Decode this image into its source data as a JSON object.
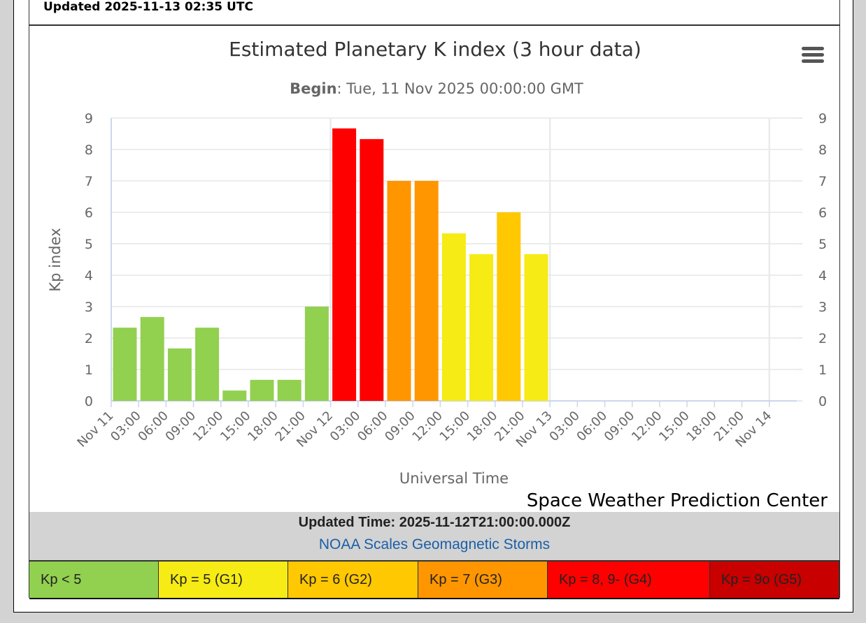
{
  "page_updated": "Updated 2025-11-13 02:35 UTC",
  "updated_time": "Updated Time: 2025-11-12T21:00:00.000Z",
  "scales_link": "NOAA Scales Geomagnetic Storms",
  "credit": "Space Weather Prediction Center",
  "legend": [
    {
      "label": "Kp < 5",
      "color": "#92D050"
    },
    {
      "label": "Kp = 5 (G1)",
      "color": "#F6EB14"
    },
    {
      "label": "Kp = 6 (G2)",
      "color": "#FFC800"
    },
    {
      "label": "Kp = 7 (G3)",
      "color": "#FF9600"
    },
    {
      "label": "Kp = 8, 9- (G4)",
      "color": "#FF0000"
    },
    {
      "label": "Kp = 9o (G5)",
      "color": "#C80000"
    }
  ],
  "chart_data": {
    "type": "bar",
    "title": "Estimated Planetary K index (3 hour data)",
    "subtitle_label": "Begin",
    "subtitle_value": ": Tue, 11 Nov 2025 00:00:00 GMT",
    "xlabel": "Universal Time",
    "ylabel": "Kp index",
    "ylim": [
      0,
      9
    ],
    "yticks": [
      "0",
      "1",
      "2",
      "3",
      "4",
      "5",
      "6",
      "7",
      "8",
      "9"
    ],
    "xticks": [
      "Nov 11",
      "03:00",
      "06:00",
      "09:00",
      "12:00",
      "15:00",
      "18:00",
      "21:00",
      "Nov 12",
      "03:00",
      "06:00",
      "09:00",
      "12:00",
      "15:00",
      "18:00",
      "21:00",
      "Nov 13",
      "03:00",
      "06:00",
      "09:00",
      "12:00",
      "15:00",
      "18:00",
      "21:00",
      "Nov 14"
    ],
    "values": [
      2.33,
      2.67,
      1.67,
      2.33,
      0.33,
      0.67,
      0.67,
      3.0,
      8.67,
      8.33,
      7.0,
      7.0,
      5.33,
      4.67,
      6.0,
      4.67
    ]
  }
}
